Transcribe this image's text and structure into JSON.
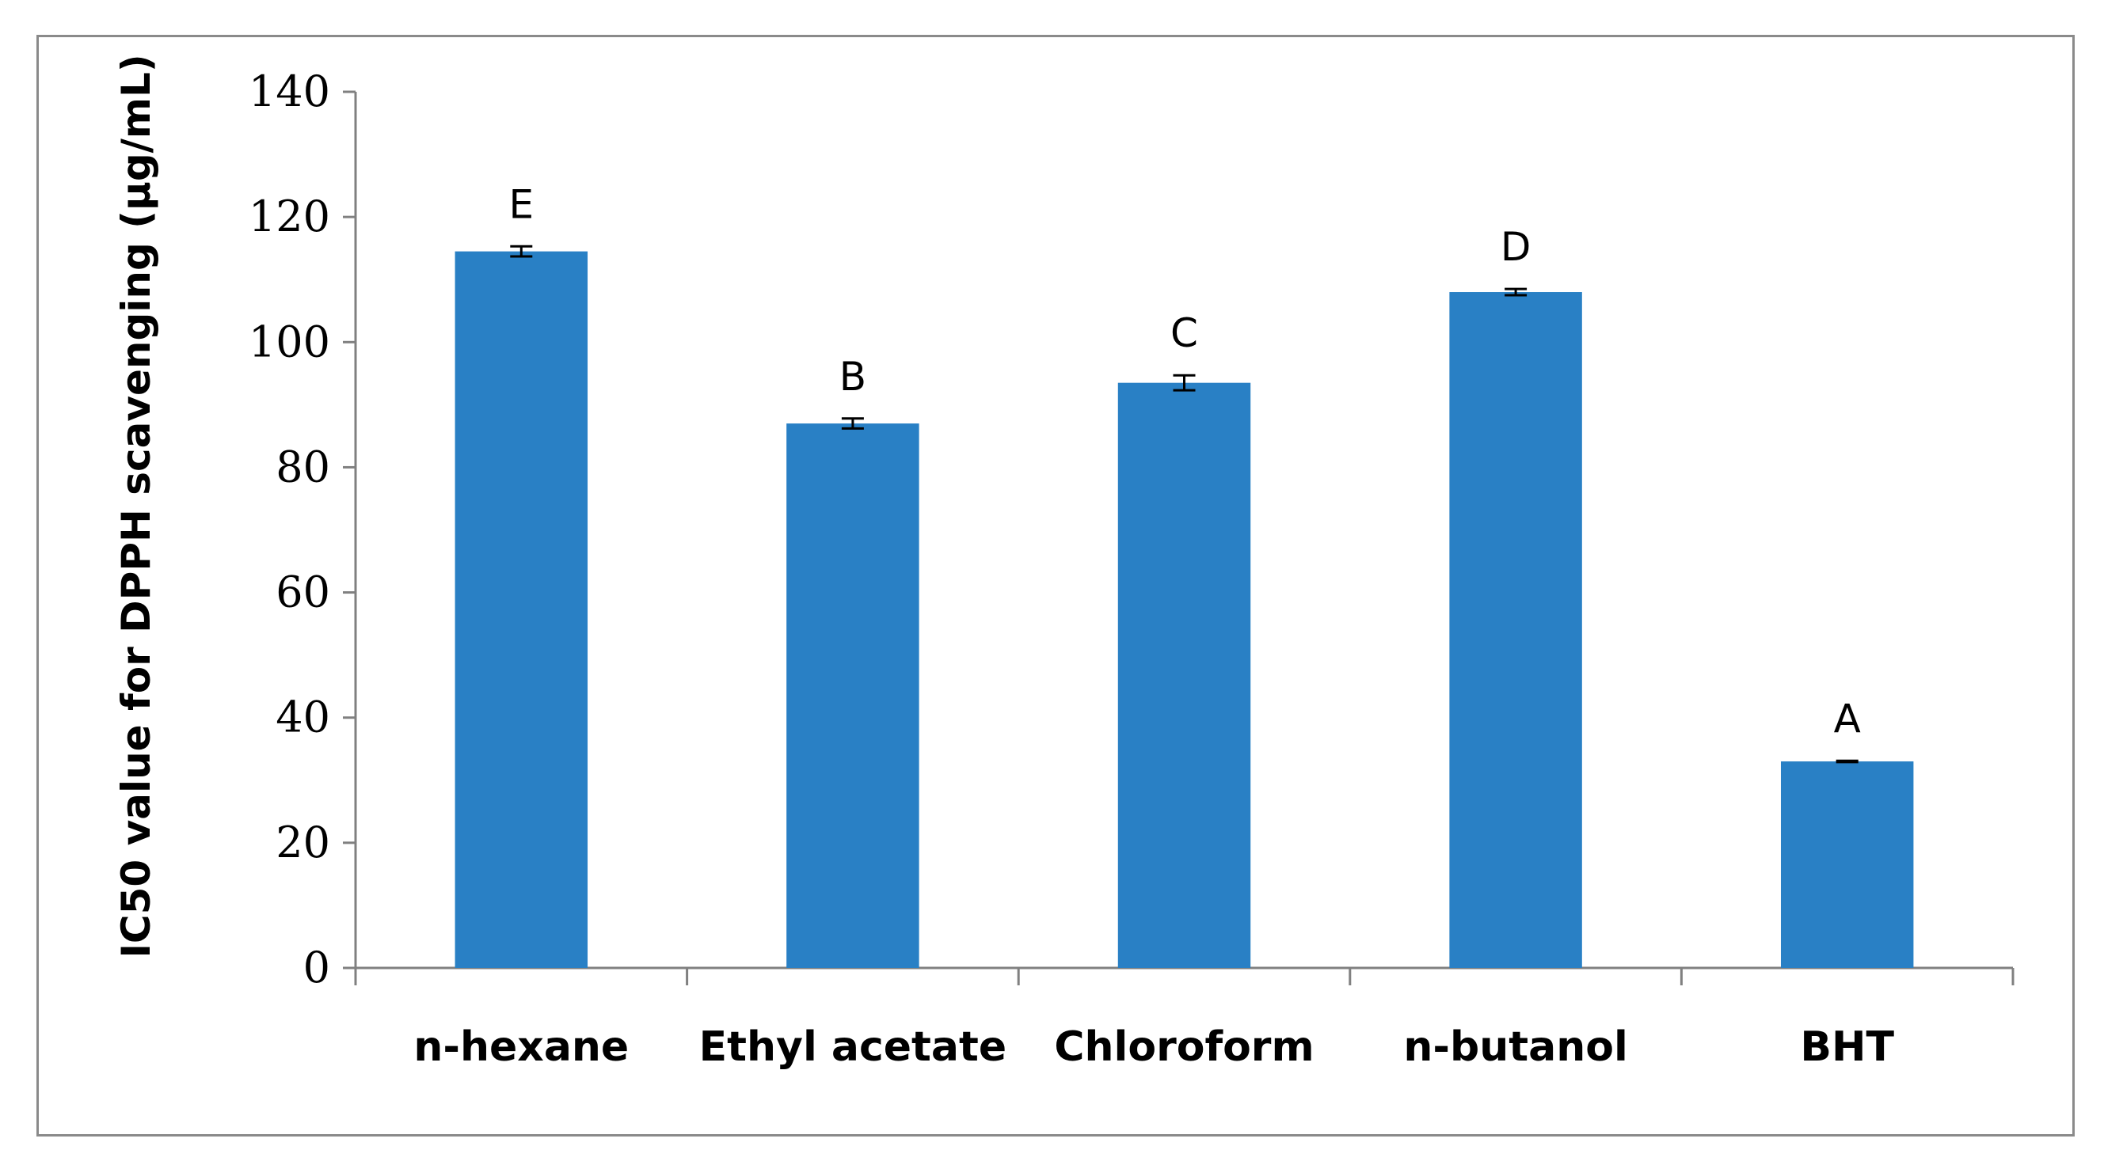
{
  "chart_data": {
    "type": "bar",
    "title": "",
    "xlabel": "",
    "ylabel": "IC50 value for DPPH scavenging (µg/mL)",
    "ylim": [
      0,
      140
    ],
    "yticks": [
      0,
      20,
      40,
      60,
      80,
      100,
      120,
      140
    ],
    "categories": [
      "n-hexane",
      "Ethyl acetate",
      "Chloroform",
      "n-butanol",
      "BHT"
    ],
    "values": [
      114.5,
      87,
      93.5,
      108,
      33
    ],
    "errors": [
      0.8,
      0.8,
      1.2,
      0.5,
      0.1
    ],
    "significance_labels": [
      "E",
      "B",
      "C",
      "D",
      "A"
    ],
    "bar_color": "#2980c5",
    "grid": false,
    "legend": "none"
  }
}
